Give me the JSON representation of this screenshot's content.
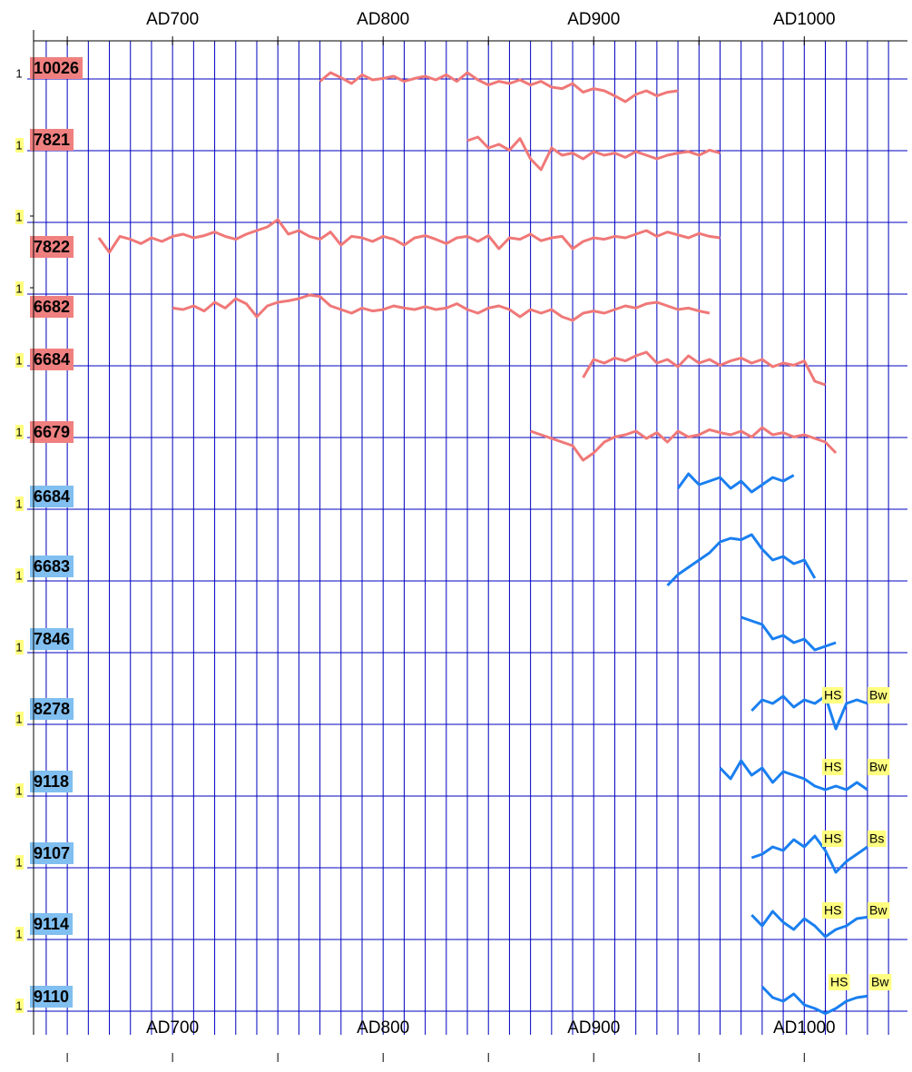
{
  "chart_data": {
    "type": "line",
    "xlim": [
      634,
      1049
    ],
    "xticks": [
      {
        "value": 700,
        "label": "AD700"
      },
      {
        "value": 800,
        "label": "AD800"
      },
      {
        "value": 900,
        "label": "AD900"
      },
      {
        "value": 1000,
        "label": "AD1000"
      }
    ],
    "xminor": [
      650,
      750,
      850,
      950
    ],
    "xgrid": [
      640,
      650,
      660,
      670,
      680,
      690,
      700,
      710,
      720,
      730,
      740,
      750,
      760,
      770,
      780,
      790,
      800,
      810,
      820,
      830,
      840,
      850,
      860,
      870,
      880,
      890,
      900,
      910,
      920,
      930,
      940,
      950,
      960,
      970,
      980,
      990,
      1000,
      1010,
      1020,
      1030,
      1040
    ],
    "series": [
      {
        "name": "10026",
        "color": "#f07878",
        "label_color": "#f08080",
        "yticks": [
          1
        ],
        "tick_background": null,
        "x": [
          770,
          775,
          780,
          785,
          790,
          795,
          800,
          805,
          810,
          815,
          820,
          825,
          830,
          835,
          840,
          845,
          850,
          855,
          860,
          865,
          870,
          875,
          880,
          885,
          890,
          895,
          900,
          905,
          910,
          915,
          920,
          925,
          930,
          935,
          940
        ],
        "values": [
          0.88,
          1.0,
          0.93,
          0.85,
          0.97,
          0.9,
          0.92,
          0.95,
          0.88,
          0.92,
          0.95,
          0.9,
          0.97,
          0.88,
          1.0,
          0.9,
          0.83,
          0.88,
          0.85,
          0.9,
          0.83,
          0.88,
          0.8,
          0.78,
          0.85,
          0.73,
          0.78,
          0.75,
          0.68,
          0.6,
          0.7,
          0.75,
          0.68,
          0.73,
          0.75
        ]
      },
      {
        "name": "7821",
        "color": "#f07878",
        "label_color": "#f08080",
        "yticks": [
          1
        ],
        "tick_background": "#ffff80",
        "x": [
          840,
          845,
          850,
          855,
          860,
          865,
          870,
          875,
          880,
          885,
          890,
          895,
          900,
          905,
          910,
          915,
          920,
          925,
          930,
          935,
          940,
          945,
          950,
          955,
          960
        ],
        "values": [
          1.05,
          1.1,
          0.95,
          1.0,
          0.92,
          1.08,
          0.8,
          0.65,
          0.95,
          0.85,
          0.88,
          0.8,
          0.9,
          0.85,
          0.88,
          0.82,
          0.9,
          0.85,
          0.8,
          0.85,
          0.88,
          0.9,
          0.85,
          0.92,
          0.88
        ]
      },
      {
        "name": "7822",
        "color": "#f07878",
        "label_color": "#f08080",
        "yticks": [
          1
        ],
        "tick_background": "#ffff80",
        "x": [
          665,
          670,
          675,
          680,
          685,
          690,
          695,
          700,
          705,
          710,
          715,
          720,
          725,
          730,
          735,
          740,
          745,
          750,
          755,
          760,
          765,
          770,
          775,
          780,
          785,
          790,
          795,
          800,
          805,
          810,
          815,
          820,
          825,
          830,
          835,
          840,
          845,
          850,
          855,
          860,
          865,
          870,
          875,
          880,
          885,
          890,
          895,
          900,
          905,
          910,
          915,
          920,
          925,
          930,
          935,
          940,
          945,
          950,
          955,
          960
        ],
        "values": [
          0.7,
          0.5,
          0.72,
          0.68,
          0.62,
          0.7,
          0.65,
          0.72,
          0.75,
          0.7,
          0.73,
          0.78,
          0.72,
          0.68,
          0.75,
          0.8,
          0.85,
          0.95,
          0.75,
          0.8,
          0.72,
          0.68,
          0.78,
          0.6,
          0.72,
          0.7,
          0.65,
          0.72,
          0.68,
          0.6,
          0.7,
          0.73,
          0.68,
          0.62,
          0.7,
          0.72,
          0.65,
          0.73,
          0.55,
          0.7,
          0.68,
          0.75,
          0.66,
          0.7,
          0.72,
          0.55,
          0.65,
          0.7,
          0.68,
          0.72,
          0.7,
          0.75,
          0.8,
          0.72,
          0.78,
          0.74,
          0.7,
          0.76,
          0.72,
          0.7
        ]
      },
      {
        "name": "6682",
        "color": "#f07878",
        "label_color": "#f08080",
        "yticks": [
          1
        ],
        "tick_background": "#ffff80",
        "x": [
          700,
          705,
          710,
          715,
          720,
          725,
          730,
          735,
          740,
          745,
          750,
          755,
          760,
          765,
          770,
          775,
          780,
          785,
          790,
          795,
          800,
          805,
          810,
          815,
          820,
          825,
          830,
          835,
          840,
          845,
          850,
          855,
          860,
          865,
          870,
          875,
          880,
          885,
          890,
          895,
          900,
          905,
          910,
          915,
          920,
          925,
          930,
          935,
          940,
          945,
          950,
          955
        ],
        "values": [
          0.72,
          0.7,
          0.75,
          0.68,
          0.8,
          0.72,
          0.85,
          0.78,
          0.6,
          0.75,
          0.8,
          0.82,
          0.85,
          0.9,
          0.88,
          0.75,
          0.7,
          0.65,
          0.72,
          0.68,
          0.7,
          0.75,
          0.72,
          0.7,
          0.74,
          0.7,
          0.72,
          0.78,
          0.7,
          0.65,
          0.72,
          0.75,
          0.7,
          0.6,
          0.7,
          0.65,
          0.7,
          0.6,
          0.55,
          0.65,
          0.68,
          0.65,
          0.7,
          0.75,
          0.72,
          0.78,
          0.8,
          0.75,
          0.7,
          0.72,
          0.68,
          0.65
        ]
      },
      {
        "name": "6684",
        "color": "#f07878",
        "label_color": "#f08080",
        "yticks": [
          1
        ],
        "tick_background": "#ffff80",
        "x": [
          895,
          900,
          905,
          910,
          915,
          920,
          925,
          930,
          935,
          940,
          945,
          950,
          955,
          960,
          965,
          970,
          975,
          980,
          985,
          990,
          995,
          1000,
          1005,
          1010
        ],
        "values": [
          0.75,
          1.0,
          0.95,
          1.02,
          0.98,
          1.05,
          1.1,
          0.95,
          1.0,
          0.9,
          1.05,
          0.95,
          1.0,
          0.92,
          0.98,
          1.02,
          0.95,
          1.0,
          0.9,
          0.95,
          0.92,
          0.98,
          0.7,
          0.65
        ]
      },
      {
        "name": "6679",
        "color": "#f07878",
        "label_color": "#f08080",
        "yticks": [
          1
        ],
        "tick_background": "#ffff80",
        "x": [
          870,
          875,
          880,
          885,
          890,
          895,
          900,
          905,
          910,
          915,
          920,
          925,
          930,
          935,
          940,
          945,
          950,
          955,
          960,
          965,
          970,
          975,
          980,
          985,
          990,
          995,
          1000,
          1005,
          1010,
          1015
        ],
        "values": [
          1.0,
          0.95,
          0.9,
          0.85,
          0.8,
          0.6,
          0.7,
          0.85,
          0.92,
          0.95,
          1.0,
          0.9,
          0.98,
          0.85,
          1.0,
          0.92,
          0.95,
          1.02,
          0.98,
          0.95,
          1.0,
          0.92,
          1.05,
          0.95,
          0.98,
          0.92,
          0.95,
          0.9,
          0.85,
          0.7
        ]
      },
      {
        "name": "6684",
        "color": "#1a7ff0",
        "label_color": "#80bff0",
        "yticks": [
          1
        ],
        "tick_background": "#ffff80",
        "x": [
          940,
          945,
          950,
          955,
          960,
          965,
          970,
          975,
          980,
          985,
          990,
          995
        ],
        "values": [
          1.2,
          1.4,
          1.25,
          1.3,
          1.35,
          1.2,
          1.3,
          1.15,
          1.25,
          1.35,
          1.3,
          1.38
        ]
      },
      {
        "name": "6683",
        "color": "#1a7ff0",
        "label_color": "#80bff0",
        "yticks": [
          1
        ],
        "tick_background": "#ffff80",
        "x": [
          935,
          940,
          945,
          950,
          955,
          960,
          965,
          970,
          975,
          980,
          985,
          990,
          995,
          1000,
          1005
        ],
        "values": [
          0.85,
          1.0,
          1.1,
          1.2,
          1.3,
          1.45,
          1.5,
          1.48,
          1.55,
          1.35,
          1.2,
          1.25,
          1.15,
          1.2,
          0.95
        ]
      },
      {
        "name": "7846",
        "color": "#1a7ff0",
        "label_color": "#80bff0",
        "yticks": [
          1
        ],
        "tick_background": "#ffff80",
        "x": [
          970,
          975,
          980,
          985,
          990,
          995,
          1000,
          1005,
          1010,
          1015
        ],
        "values": [
          1.4,
          1.35,
          1.3,
          1.1,
          1.15,
          1.05,
          1.1,
          0.95,
          1.0,
          1.05
        ]
      },
      {
        "name": "8278",
        "color": "#1a7ff0",
        "label_color": "#80bff0",
        "yticks": [
          1
        ],
        "tick_background": "#ffff80",
        "annotations": [
          "HS",
          "Bw"
        ],
        "x": [
          975,
          980,
          985,
          990,
          995,
          1000,
          1005,
          1010,
          1015,
          1020,
          1025,
          1030
        ],
        "values": [
          1.1,
          1.25,
          1.2,
          1.3,
          1.15,
          1.25,
          1.2,
          1.3,
          0.85,
          1.2,
          1.25,
          1.2
        ]
      },
      {
        "name": "9118",
        "color": "#1a7ff0",
        "label_color": "#80bff0",
        "yticks": [
          1
        ],
        "tick_background": "#ffff80",
        "annotations": [
          "HS",
          "Bw"
        ],
        "x": [
          960,
          965,
          970,
          975,
          980,
          985,
          990,
          995,
          1000,
          1005,
          1010,
          1015,
          1020,
          1025,
          1030
        ],
        "values": [
          1.3,
          1.15,
          1.4,
          1.2,
          1.3,
          1.1,
          1.25,
          1.2,
          1.15,
          1.05,
          1.0,
          1.05,
          1.0,
          1.1,
          1.0
        ]
      },
      {
        "name": "9107",
        "color": "#1a7ff0",
        "label_color": "#80bff0",
        "yticks": [
          1
        ],
        "tick_background": "#ffff80",
        "annotations": [
          "HS",
          "Bs"
        ],
        "x": [
          975,
          980,
          985,
          990,
          995,
          1000,
          1005,
          1010,
          1015,
          1020,
          1025,
          1030
        ],
        "values": [
          1.05,
          1.1,
          1.2,
          1.15,
          1.3,
          1.2,
          1.35,
          1.15,
          0.85,
          1.0,
          1.1,
          1.2
        ]
      },
      {
        "name": "9114",
        "color": "#1a7ff0",
        "label_color": "#80bff0",
        "yticks": [
          1
        ],
        "tick_background": "#ffff80",
        "annotations": [
          "HS",
          "Bw"
        ],
        "x": [
          975,
          980,
          985,
          990,
          995,
          1000,
          1005,
          1010,
          1015,
          1020,
          1025,
          1030
        ],
        "values": [
          1.25,
          1.1,
          1.3,
          1.15,
          1.05,
          1.2,
          1.1,
          0.95,
          1.05,
          1.1,
          1.2,
          1.22
        ]
      },
      {
        "name": "9110",
        "color": "#1a7ff0",
        "label_color": "#80bff0",
        "yticks": [
          1
        ],
        "tick_background": "#ffff80",
        "annotations": [
          "HS",
          "Bw"
        ],
        "x": [
          980,
          985,
          990,
          995,
          1000,
          1005,
          1010,
          1015,
          1020,
          1025,
          1030
        ],
        "values": [
          1.25,
          1.1,
          1.05,
          1.15,
          1.0,
          0.95,
          0.88,
          0.95,
          1.05,
          1.1,
          1.12
        ]
      }
    ]
  }
}
